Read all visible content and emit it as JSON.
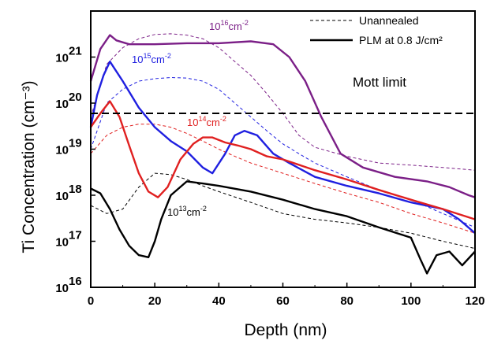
{
  "chart_data": {
    "type": "line",
    "xlabel": "Depth (nm)",
    "ylabel": "Ti Concentration (cm⁻³)",
    "yscale": "log",
    "xlim": [
      0,
      120
    ],
    "ylim": [
      1e+16,
      1e+22
    ],
    "x_ticks": [
      "0",
      "20",
      "40",
      "60",
      "80",
      "100",
      "120"
    ],
    "y_ticks": [
      {
        "base": "10",
        "exp": "16"
      },
      {
        "base": "10",
        "exp": "17"
      },
      {
        "base": "10",
        "exp": "18"
      },
      {
        "base": "10",
        "exp": "19"
      },
      {
        "base": "10",
        "exp": "20"
      },
      {
        "base": "10",
        "exp": "21"
      }
    ],
    "legend": {
      "position": "top-right",
      "entries": [
        {
          "label": "Unannealed",
          "style": "dashed"
        },
        {
          "label": "PLM at 0.8 J/cm²",
          "style": "solid"
        }
      ]
    },
    "mott_limit": {
      "label": "Mott limit",
      "y": 6e+19
    },
    "series": [
      {
        "dose": "10¹⁶cm⁻²",
        "color": "#7b1f87",
        "style": "solid",
        "x": [
          0,
          3,
          6,
          8,
          12,
          20,
          30,
          40,
          50,
          57,
          62,
          67,
          72,
          78,
          85,
          95,
          105,
          112,
          118,
          120
        ],
        "y": [
          3e+20,
          1.5e+21,
          3e+21,
          2.3e+21,
          1.9e+21,
          1.9e+21,
          2e+21,
          2e+21,
          2.2e+21,
          1.9e+21,
          1e+21,
          3e+20,
          5e+19,
          8e+18,
          4e+18,
          2.5e+18,
          2e+18,
          1.5e+18,
          1e+18,
          9e+17
        ]
      },
      {
        "dose": "10¹⁶cm⁻²",
        "color": "#7b1f87",
        "style": "dashed",
        "x": [
          0,
          5,
          10,
          15,
          20,
          25,
          30,
          35,
          40,
          45,
          50,
          55,
          60,
          65,
          70,
          80,
          90,
          100,
          110,
          120
        ],
        "y": [
          5e+19,
          7e+20,
          1.6e+21,
          2.5e+21,
          3.1e+21,
          3.2e+21,
          3e+21,
          2.5e+21,
          1.6e+21,
          8e+20,
          4e+20,
          1.6e+20,
          6e+19,
          2e+19,
          1.1e+19,
          7e+18,
          5e+18,
          4.5e+18,
          4e+18,
          3.5e+18
        ]
      },
      {
        "dose": "10¹⁵cm⁻²",
        "color": "#1f1fe0",
        "style": "solid",
        "x": [
          0,
          2,
          4,
          6,
          10,
          15,
          20,
          25,
          30,
          35,
          38,
          42,
          45,
          48,
          52,
          57,
          62,
          70,
          80,
          90,
          100,
          110,
          115,
          120
        ],
        "y": [
          3e+19,
          1.5e+20,
          4e+20,
          8e+20,
          3e+20,
          8e+19,
          3e+19,
          1.5e+19,
          9e+18,
          4e+18,
          3e+18,
          8e+18,
          2e+19,
          2.5e+19,
          2e+19,
          8e+18,
          5e+18,
          2.5e+18,
          1.6e+18,
          1.1e+18,
          7e+17,
          5e+17,
          3e+17,
          1.5e+17
        ]
      },
      {
        "dose": "10¹⁵cm⁻²",
        "color": "#1f1fe0",
        "style": "dashed",
        "x": [
          0,
          5,
          10,
          15,
          20,
          25,
          30,
          35,
          40,
          45,
          50,
          55,
          60,
          65,
          70,
          80,
          90,
          100,
          110,
          120
        ],
        "y": [
          1e+19,
          1e+20,
          2e+20,
          3e+20,
          3.4e+20,
          3.6e+20,
          3.5e+20,
          3e+20,
          2e+20,
          1e+20,
          5e+19,
          2.5e+19,
          1.3e+19,
          8e+18,
          5e+18,
          2.5e+18,
          1.3e+18,
          8e+17,
          4e+17,
          2e+17
        ]
      },
      {
        "dose": "10¹⁴cm⁻²",
        "color": "#e02020",
        "style": "solid",
        "x": [
          0,
          3,
          6,
          9,
          12,
          15,
          18,
          21,
          24,
          28,
          32,
          35,
          38,
          42,
          46,
          50,
          55,
          60,
          70,
          80,
          90,
          100,
          110,
          120
        ],
        "y": [
          3e+19,
          6e+19,
          1.1e+20,
          5e+19,
          1.2e+19,
          3e+18,
          1.2e+18,
          9e+17,
          1.5e+18,
          6e+18,
          1.3e+19,
          1.8e+19,
          1.8e+19,
          1.4e+19,
          1.2e+19,
          1e+19,
          7e+18,
          6e+18,
          3.5e+18,
          2.2e+18,
          1.3e+18,
          8e+17,
          5e+17,
          3e+17
        ]
      },
      {
        "dose": "10¹⁴cm⁻²",
        "color": "#e02020",
        "style": "dashed",
        "x": [
          0,
          5,
          10,
          15,
          20,
          25,
          30,
          35,
          40,
          45,
          50,
          60,
          70,
          80,
          90,
          100,
          110,
          120
        ],
        "y": [
          8e+18,
          2e+19,
          3e+19,
          3.5e+19,
          3.5e+19,
          3e+19,
          2.2e+19,
          1.5e+19,
          1e+19,
          7e+18,
          5e+18,
          3e+18,
          1.8e+18,
          1.1e+18,
          7e+17,
          4e+17,
          2.5e+17,
          1.5e+17
        ]
      },
      {
        "dose": "10¹³cm⁻²",
        "color": "#000000",
        "style": "solid",
        "x": [
          0,
          3,
          6,
          9,
          12,
          15,
          18,
          20,
          22,
          25,
          30,
          35,
          40,
          50,
          60,
          70,
          80,
          90,
          100,
          103,
          105,
          108,
          112,
          116,
          120
        ],
        "y": [
          1.4e+18,
          1.1e+18,
          5e+17,
          1.8e+17,
          8e+16,
          5e+16,
          4.5e+16,
          1e+17,
          3e+17,
          1e+18,
          2e+18,
          1.8e+18,
          1.6e+18,
          1.2e+18,
          8e+17,
          5e+17,
          3.5e+17,
          2e+17,
          1.2e+17,
          4e+16,
          2e+16,
          5e+16,
          6e+16,
          3e+16,
          6e+16
        ]
      },
      {
        "dose": "10¹³cm⁻²",
        "color": "#000000",
        "style": "dashed",
        "x": [
          0,
          5,
          10,
          15,
          20,
          25,
          30,
          35,
          40,
          50,
          60,
          70,
          80,
          90,
          100,
          110,
          120
        ],
        "y": [
          6e+17,
          4e+17,
          5e+17,
          1.5e+18,
          3e+18,
          2.8e+18,
          2.2e+18,
          1.6e+18,
          1.2e+18,
          7e+17,
          4e+17,
          3e+17,
          2.5e+17,
          2e+17,
          1.5e+17,
          1e+17,
          7e+16
        ]
      }
    ],
    "annotations": [
      {
        "base": "10",
        "exp": "16",
        "unit": "cm",
        "unit_exp": "-2",
        "color": "#7b1f87"
      },
      {
        "base": "10",
        "exp": "15",
        "unit": "cm",
        "unit_exp": "-2",
        "color": "#1f1fe0"
      },
      {
        "base": "10",
        "exp": "14",
        "unit": "cm",
        "unit_exp": "-2",
        "color": "#e02020"
      },
      {
        "base": "10",
        "exp": "13",
        "unit": "cm",
        "unit_exp": "-2",
        "color": "#000000"
      }
    ]
  }
}
